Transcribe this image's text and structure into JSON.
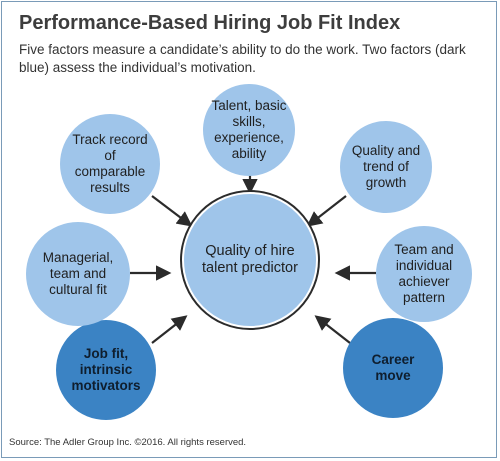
{
  "header": {
    "title": "Performance-Based Hiring Job Fit Index",
    "subtitle": "Five factors measure a candidate’s ability to do the work. Two factors (dark blue) assess the individual’s motivation."
  },
  "center": {
    "label": "Quality of hire talent predictor"
  },
  "factors": [
    {
      "label": "Talent, basic skills, experience, ability",
      "group": "ability"
    },
    {
      "label": "Quality and trend of growth",
      "group": "ability"
    },
    {
      "label": "Team and individual achiever pattern",
      "group": "ability"
    },
    {
      "label": "Career move",
      "group": "motivation"
    },
    {
      "label": "Job fit, intrinsic motivators",
      "group": "motivation"
    },
    {
      "label": "Managerial, team and cultural fit",
      "group": "ability"
    },
    {
      "label": "Track record of comparable results",
      "group": "ability"
    }
  ],
  "colors": {
    "ability": "#9fc5ea",
    "motivation": "#3b83c4",
    "arrow": "#2b2b2b",
    "border": "#7a9bb8"
  },
  "footer": {
    "source": "Source: The Adler Group Inc. ©2016. All rights reserved."
  }
}
